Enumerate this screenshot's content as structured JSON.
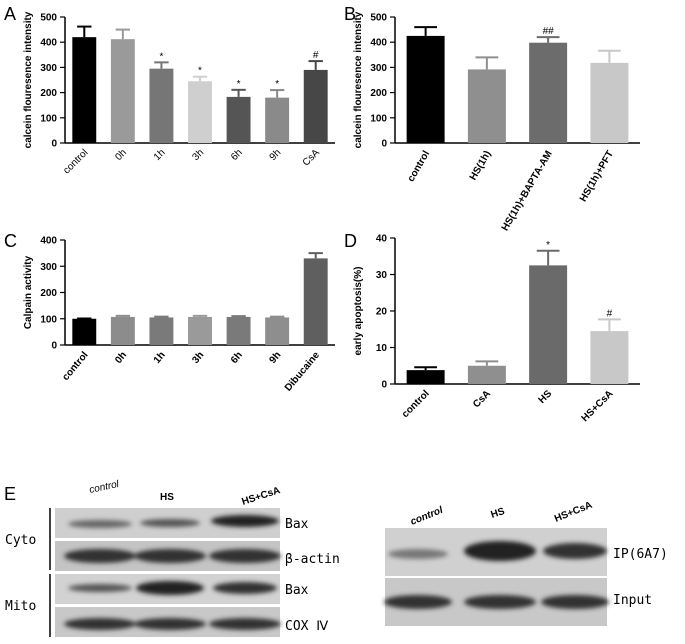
{
  "chart_data": [
    {
      "type": "bar",
      "label": "A",
      "y_label": "calcein flouresence intensity",
      "categories": [
        "control",
        "0h",
        "1h",
        "3h",
        "6h",
        "9h",
        "CsA"
      ],
      "values": [
        420,
        412,
        295,
        245,
        183,
        180,
        290
      ],
      "errors": [
        42,
        38,
        25,
        18,
        28,
        30,
        35
      ],
      "annotations": [
        null,
        null,
        "*",
        "*",
        "*",
        "*",
        "#"
      ],
      "colors": [
        "#000000",
        "#9a9a9a",
        "#767676",
        "#cfcfcf",
        "#555555",
        "#8a8a8a",
        "#474747"
      ],
      "ylim": [
        0,
        500
      ],
      "yticks": [
        0,
        100,
        200,
        300,
        400,
        500
      ]
    },
    {
      "type": "bar",
      "label": "B",
      "y_label": "calcein flouresence intensity",
      "categories": [
        "control",
        "HS(1h)",
        "HS(1h)+BAPTA-AM",
        "HS(1h)+PFT"
      ],
      "values": [
        425,
        292,
        398,
        318
      ],
      "errors": [
        35,
        48,
        22,
        48
      ],
      "annotations": [
        null,
        null,
        "##",
        null
      ],
      "colors": [
        "#000000",
        "#8f8f8f",
        "#6c6c6c",
        "#c8c8c8"
      ],
      "ylim": [
        0,
        500
      ],
      "yticks": [
        0,
        100,
        200,
        300,
        400,
        500
      ]
    },
    {
      "type": "bar",
      "label": "C",
      "y_label": "Calpain activity",
      "categories": [
        "control",
        "0h",
        "1h",
        "3h",
        "6h",
        "9h",
        "Dibucaine"
      ],
      "values": [
        100,
        107,
        105,
        107,
        107,
        105,
        330
      ],
      "errors": [
        1,
        4,
        3,
        4,
        3,
        3,
        20
      ],
      "annotations": [
        null,
        null,
        null,
        null,
        null,
        null,
        null
      ],
      "colors": [
        "#000000",
        "#8c8c8c",
        "#7a7a7a",
        "#9a9a9a",
        "#7a7a7a",
        "#8e8e8e",
        "#5f5f5f"
      ],
      "ylim": [
        0,
        400
      ],
      "yticks": [
        0,
        100,
        200,
        300,
        400
      ]
    },
    {
      "type": "bar",
      "label": "D",
      "y_label": "early apoptosis(%)",
      "categories": [
        "control",
        "CsA",
        "HS",
        "HS+CsA"
      ],
      "values": [
        3.8,
        5,
        32.5,
        14.5
      ],
      "errors": [
        0.8,
        1.2,
        4,
        3.2
      ],
      "annotations": [
        null,
        null,
        "*",
        "#"
      ],
      "colors": [
        "#000000",
        "#8f8f8f",
        "#6a6a6a",
        "#c8c8c8"
      ],
      "ylim": [
        0,
        40
      ],
      "yticks": [
        0,
        10,
        20,
        30,
        40
      ]
    }
  ],
  "blots": {
    "label": "E",
    "left": {
      "lanes": [
        "control",
        "HS",
        "HS+CsA"
      ],
      "compartments": [
        "Cyto",
        "Mito"
      ],
      "rows": [
        "Bax",
        "β-actin",
        "Bax",
        "COX Ⅳ"
      ]
    },
    "right": {
      "lanes": [
        "control",
        "HS",
        "HS+CsA"
      ],
      "rows": [
        "IP(6A7)",
        "Input"
      ]
    }
  }
}
